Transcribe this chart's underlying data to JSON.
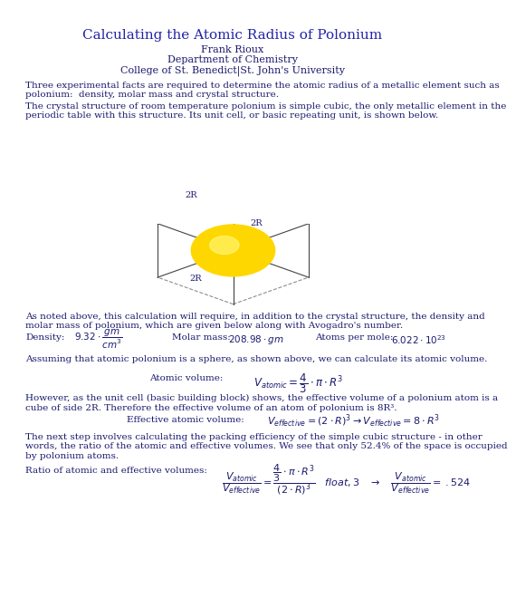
{
  "title": "Calculating the Atomic Radius of Polonium",
  "author": "Frank Rioux",
  "dept": "Department of Chemistry",
  "college": "College of St. Benedict|St. John's University",
  "text_color": "#2222aa",
  "bg_color": "#ffffff",
  "body_color": "#1a1a6e",
  "para1": "Three experimental facts are required to determine the atomic radius of a metallic element such as\npolonium:  density, molar mass and crystal structure.",
  "para2": "The crystal structure of room temperature polonium is simple cubic, the only metallic element in the\nperiodic table with this structure. Its unit cell, or basic repeating unit, is shown below.",
  "para3": "As noted above, this calculation will require, in addition to the crystal structure, the density and\nmolar mass of polonium, which are given below along with Avogadro's number.",
  "para4": "Assuming that atomic polonium is a sphere, as shown above, we can calculate its atomic volume.",
  "para5": "However, as the unit cell (basic building block) shows, the effective volume of a polonium atom is a\ncube of side 2R. Therefore the effective volume of an atom of polonium is 8R³.",
  "para6": "The next step involves calculating the packing efficiency of the simple cubic structure - in other\nwords, the ratio of the atomic and effective volumes. We see that only 52.4% of the space is occupied\nby polonium atoms."
}
